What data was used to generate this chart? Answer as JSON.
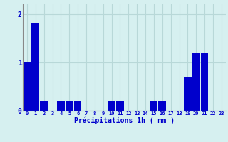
{
  "categories": [
    0,
    1,
    2,
    3,
    4,
    5,
    6,
    7,
    8,
    9,
    10,
    11,
    12,
    13,
    14,
    15,
    16,
    17,
    18,
    19,
    20,
    21,
    22,
    23
  ],
  "values": [
    1.0,
    1.8,
    0.2,
    0.0,
    0.2,
    0.2,
    0.2,
    0.0,
    0.0,
    0.0,
    0.2,
    0.2,
    0.0,
    0.0,
    0.0,
    0.2,
    0.2,
    0.0,
    0.0,
    0.7,
    1.2,
    1.2,
    0.0,
    0.0
  ],
  "bar_color": "#0000cc",
  "background_color": "#d6f0f0",
  "grid_color": "#b8d8d8",
  "xlabel": "Précipitations 1h ( mm )",
  "xlabel_color": "#0000cc",
  "tick_color": "#0000cc",
  "ylim": [
    0,
    2.2
  ],
  "yticks": [
    0,
    1,
    2
  ],
  "title": ""
}
